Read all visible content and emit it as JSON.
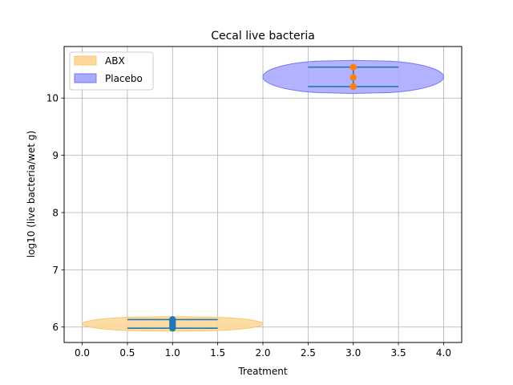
{
  "chart_data": {
    "type": "violin",
    "title": "Cecal live bacteria",
    "xlabel": "Treatment",
    "ylabel": "log10 (live bacteria/wet g)",
    "xlim": [
      -0.2,
      4.2
    ],
    "ylim": [
      5.73,
      10.9
    ],
    "xticks": [
      0.0,
      0.5,
      1.0,
      1.5,
      2.0,
      2.5,
      3.0,
      3.5,
      4.0
    ],
    "xtick_labels": [
      "0.0",
      "0.5",
      "1.0",
      "1.5",
      "2.0",
      "2.5",
      "3.0",
      "3.5",
      "4.0"
    ],
    "yticks": [
      6,
      7,
      8,
      9,
      10
    ],
    "ytick_labels": [
      "6",
      "7",
      "8",
      "9",
      "10"
    ],
    "grid": true,
    "legend_position": "top-left",
    "series": [
      {
        "name": "ABX",
        "position": 1.0,
        "color": "#fdd89a",
        "edge_color": "#f6c978",
        "violin_width": 2.0,
        "range": [
          5.98,
          6.13
        ],
        "points": [
          5.98,
          6.02,
          6.06,
          6.1,
          6.13
        ],
        "point_color": "#1f77b4"
      },
      {
        "name": "Placebo",
        "position": 3.0,
        "color": "#aaaaff",
        "edge_color": "#7777ee",
        "violin_width": 2.0,
        "range": [
          10.2,
          10.54
        ],
        "points": [
          10.2,
          10.36,
          10.54
        ],
        "point_color": "#ff7f0e"
      }
    ]
  }
}
